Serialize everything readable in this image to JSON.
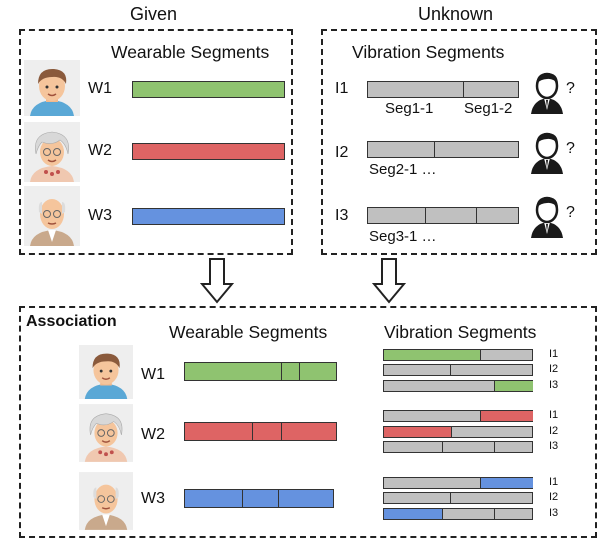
{
  "colors": {
    "green": "#8fc370",
    "red": "#de6464",
    "blue": "#6592df",
    "gray": "#c0c0c0"
  },
  "top": {
    "given_label": "Given",
    "unknown_label": "Unknown",
    "wearable_title": "Wearable Segments",
    "vibration_title": "Vibration Segments",
    "wearables": [
      {
        "label": "W1",
        "color": "green",
        "avatar": "young-man-avatar-icon"
      },
      {
        "label": "W2",
        "color": "red",
        "avatar": "old-woman-avatar-icon"
      },
      {
        "label": "W3",
        "color": "blue",
        "avatar": "old-man-avatar-icon"
      }
    ],
    "vibrations": [
      {
        "label": "I1",
        "seg_a": "Seg1-1",
        "seg_b": "Seg1-2"
      },
      {
        "label": "I2",
        "caption": "Seg2-1 …"
      },
      {
        "label": "I3",
        "caption": "Seg3-1 …"
      }
    ],
    "unknown_mark": "?"
  },
  "bottom": {
    "association_label": "Association",
    "wearable_title": "Wearable Segments",
    "vibration_title": "Vibration Segments",
    "rows": [
      {
        "wearable": "W1",
        "match_labels": [
          "I1",
          "I2",
          "I3"
        ]
      },
      {
        "wearable": "W2",
        "match_labels": [
          "I1",
          "I2",
          "I3"
        ]
      },
      {
        "wearable": "W3",
        "match_labels": [
          "I1",
          "I2",
          "I3"
        ]
      }
    ]
  }
}
